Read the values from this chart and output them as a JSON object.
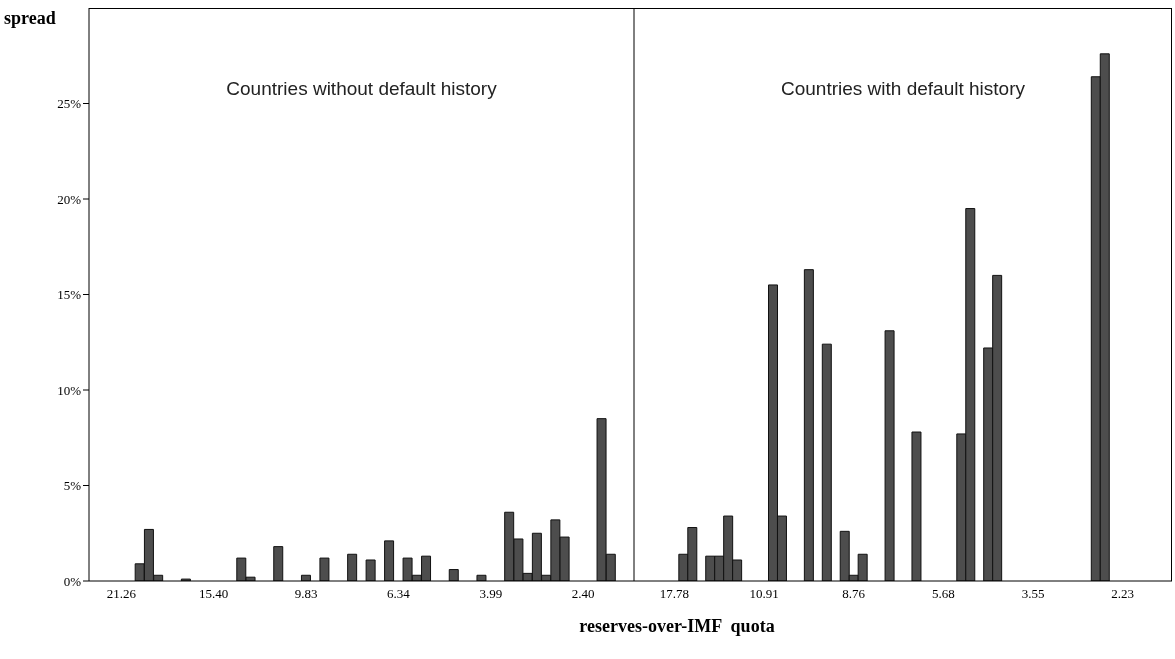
{
  "chart_data": [
    {
      "type": "bar",
      "ylabel": "spread",
      "xlabel": "reserves-over-IMF  quota",
      "annotations": [
        "Countries without default history"
      ],
      "categories": [
        null,
        null,
        null,
        "21.26",
        null,
        null,
        null,
        null,
        null,
        null,
        null,
        null,
        null,
        "15.40",
        null,
        null,
        null,
        null,
        null,
        null,
        null,
        null,
        null,
        "9.83",
        null,
        null,
        null,
        null,
        null,
        null,
        null,
        null,
        null,
        "6.34",
        null,
        null,
        null,
        null,
        null,
        null,
        null,
        null,
        null,
        "3.99",
        null,
        null,
        null,
        null,
        null,
        null,
        null,
        null,
        null,
        "2.40",
        null,
        null,
        null,
        null,
        null
      ],
      "values": [
        null,
        null,
        null,
        null,
        null,
        0.9,
        2.7,
        0.3,
        null,
        null,
        0.1,
        null,
        null,
        null,
        null,
        null,
        1.2,
        0.2,
        null,
        null,
        1.8,
        null,
        null,
        0.3,
        null,
        1.2,
        null,
        null,
        1.4,
        null,
        1.1,
        null,
        2.1,
        null,
        1.2,
        0.3,
        1.3,
        null,
        null,
        0.6,
        null,
        null,
        0.3,
        null,
        null,
        3.6,
        2.2,
        0.4,
        2.5,
        0.3,
        3.2,
        2.3,
        null,
        null,
        null,
        8.5,
        1.4,
        null,
        null
      ],
      "color": "#4d4d4d",
      "ylim": [
        0,
        30
      ],
      "yticks": [
        {
          "value": 0,
          "label": "0%"
        },
        {
          "value": 5,
          "label": "5%"
        },
        {
          "value": 10,
          "label": "10%"
        },
        {
          "value": 15,
          "label": "15%"
        },
        {
          "value": 20,
          "label": "20%"
        },
        {
          "value": 25,
          "label": "25%"
        }
      ]
    },
    {
      "type": "bar",
      "annotations": [
        "Countries with default history"
      ],
      "tick_labels": "x",
      "categories": [
        null,
        null,
        null,
        null,
        "17.78",
        null,
        null,
        null,
        null,
        null,
        null,
        null,
        null,
        null,
        "10.91",
        null,
        null,
        null,
        null,
        null,
        null,
        null,
        null,
        null,
        "8.76",
        null,
        null,
        null,
        null,
        null,
        null,
        null,
        null,
        null,
        "5.68",
        null,
        null,
        null,
        null,
        null,
        null,
        null,
        null,
        null,
        "3.55",
        null,
        null,
        null,
        null,
        null,
        null,
        null,
        null,
        null,
        "2.23",
        null,
        null,
        null,
        null,
        null
      ],
      "values": [
        null,
        null,
        null,
        null,
        null,
        1.4,
        2.8,
        null,
        1.3,
        1.3,
        3.4,
        1.1,
        null,
        null,
        null,
        15.5,
        3.4,
        null,
        null,
        16.3,
        null,
        12.4,
        null,
        2.6,
        0.3,
        1.4,
        null,
        null,
        13.1,
        null,
        null,
        7.8,
        null,
        null,
        null,
        null,
        7.7,
        19.5,
        null,
        12.2,
        16.0,
        null,
        null,
        null,
        null,
        null,
        null,
        null,
        null,
        null,
        null,
        26.4,
        27.6,
        null,
        null,
        null,
        null,
        null,
        null,
        null
      ],
      "color": "#4d4d4d",
      "ylim": [
        0,
        30
      ]
    }
  ]
}
